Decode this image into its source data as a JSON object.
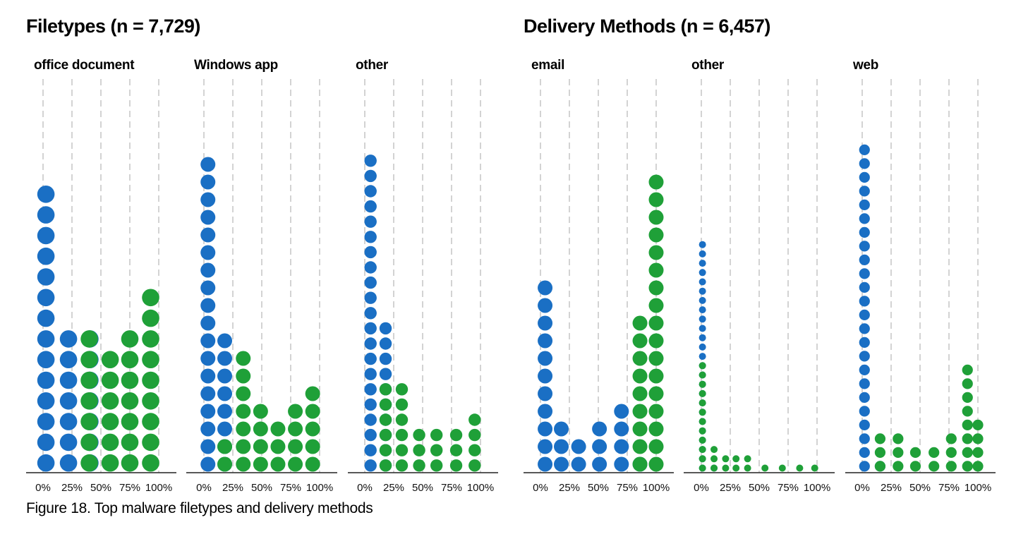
{
  "sections": {
    "filetypes_title": "Filetypes (n = 7,729)",
    "delivery_title": "Delivery Methods (n = 6,457)"
  },
  "caption": "Figure 18. Top malware filetypes and delivery methods",
  "colors": {
    "blue": "#1a6fc4",
    "green": "#1fa038",
    "gridline": "#c8c8c8",
    "axis": "#222222"
  },
  "chart_data": [
    {
      "type": "dot-histogram",
      "section": "Filetypes",
      "title": "office document",
      "x_ticks": [
        "0%",
        "25%",
        "50%",
        "75%",
        "100%"
      ],
      "bins": [
        {
          "x": 0.025,
          "blue": 14,
          "green": 0
        },
        {
          "x": 0.22,
          "blue": 7,
          "green": 0
        },
        {
          "x": 0.405,
          "blue": 7,
          "green": 0
        },
        {
          "x": 0.4,
          "blue": 0,
          "green": 7
        },
        {
          "x": 0.58,
          "blue": 0,
          "green": 6
        },
        {
          "x": 0.75,
          "blue": 0,
          "green": 7
        },
        {
          "x": 0.93,
          "blue": 0,
          "green": 9
        }
      ]
    },
    {
      "type": "dot-histogram",
      "section": "Filetypes",
      "title": "Windows app",
      "x_ticks": [
        "0%",
        "25%",
        "50%",
        "75%",
        "100%"
      ],
      "bins": [
        {
          "x": 0.035,
          "blue": 18,
          "green": 0
        },
        {
          "x": 0.18,
          "blue": 8,
          "green": 0
        },
        {
          "x": 0.18,
          "blue": 0,
          "green": 2
        },
        {
          "x": 0.34,
          "blue": 0,
          "green": 7
        },
        {
          "x": 0.49,
          "blue": 0,
          "green": 4
        },
        {
          "x": 0.64,
          "blue": 0,
          "green": 3
        },
        {
          "x": 0.79,
          "blue": 0,
          "green": 4
        },
        {
          "x": 0.94,
          "blue": 0,
          "green": 5
        }
      ]
    },
    {
      "type": "dot-histogram",
      "section": "Filetypes",
      "title": "other",
      "x_ticks": [
        "0%",
        "25%",
        "50%",
        "75%",
        "100%"
      ],
      "bins": [
        {
          "x": 0.05,
          "blue": 21,
          "green": 0
        },
        {
          "x": 0.18,
          "blue": 10,
          "green": 0
        },
        {
          "x": 0.18,
          "blue": 0,
          "green": 6
        },
        {
          "x": 0.32,
          "blue": 0,
          "green": 6
        },
        {
          "x": 0.47,
          "blue": 0,
          "green": 3
        },
        {
          "x": 0.62,
          "blue": 0,
          "green": 3
        },
        {
          "x": 0.79,
          "blue": 0,
          "green": 3
        },
        {
          "x": 0.95,
          "blue": 0,
          "green": 4
        }
      ]
    },
    {
      "type": "dot-histogram",
      "section": "Delivery Methods",
      "title": "email",
      "x_ticks": [
        "0%",
        "25%",
        "50%",
        "75%",
        "100%"
      ],
      "bins": [
        {
          "x": 0.04,
          "blue": 11,
          "green": 0
        },
        {
          "x": 0.18,
          "blue": 3,
          "green": 0
        },
        {
          "x": 0.33,
          "blue": 2,
          "green": 0
        },
        {
          "x": 0.51,
          "blue": 3,
          "green": 0
        },
        {
          "x": 0.7,
          "blue": 4,
          "green": 0
        },
        {
          "x": 0.86,
          "blue": 1,
          "green": 0
        },
        {
          "x": 0.86,
          "blue": 0,
          "green": 9
        },
        {
          "x": 1.0,
          "blue": 0,
          "green": 17
        }
      ]
    },
    {
      "type": "dot-histogram",
      "section": "Delivery Methods",
      "title": "other",
      "x_ticks": [
        "0%",
        "25%",
        "50%",
        "75%",
        "100%"
      ],
      "bins": [
        {
          "x": 0.01,
          "blue": 25,
          "green": 0
        },
        {
          "x": 0.01,
          "blue": 0,
          "green": 12
        },
        {
          "x": 0.11,
          "blue": 1,
          "green": 0
        },
        {
          "x": 0.11,
          "blue": 0,
          "green": 3
        },
        {
          "x": 0.21,
          "blue": 0,
          "green": 2
        },
        {
          "x": 0.3,
          "blue": 0,
          "green": 2
        },
        {
          "x": 0.4,
          "blue": 0,
          "green": 2
        },
        {
          "x": 0.55,
          "blue": 0,
          "green": 1
        },
        {
          "x": 0.7,
          "blue": 0,
          "green": 1
        },
        {
          "x": 0.85,
          "blue": 0,
          "green": 1
        },
        {
          "x": 0.98,
          "blue": 0,
          "green": 1
        }
      ]
    },
    {
      "type": "dot-histogram",
      "section": "Delivery Methods",
      "title": "web",
      "x_ticks": [
        "0%",
        "25%",
        "50%",
        "75%",
        "100%"
      ],
      "bins": [
        {
          "x": 0.02,
          "blue": 24,
          "green": 0
        },
        {
          "x": 0.155,
          "blue": 1,
          "green": 0
        },
        {
          "x": 0.155,
          "blue": 0,
          "green": 3
        },
        {
          "x": 0.31,
          "blue": 0,
          "green": 3
        },
        {
          "x": 0.46,
          "blue": 0,
          "green": 2
        },
        {
          "x": 0.62,
          "blue": 0,
          "green": 2
        },
        {
          "x": 0.77,
          "blue": 0,
          "green": 3
        },
        {
          "x": 0.91,
          "blue": 0,
          "green": 8
        },
        {
          "x": 1.0,
          "blue": 0,
          "green": 4
        }
      ]
    }
  ]
}
